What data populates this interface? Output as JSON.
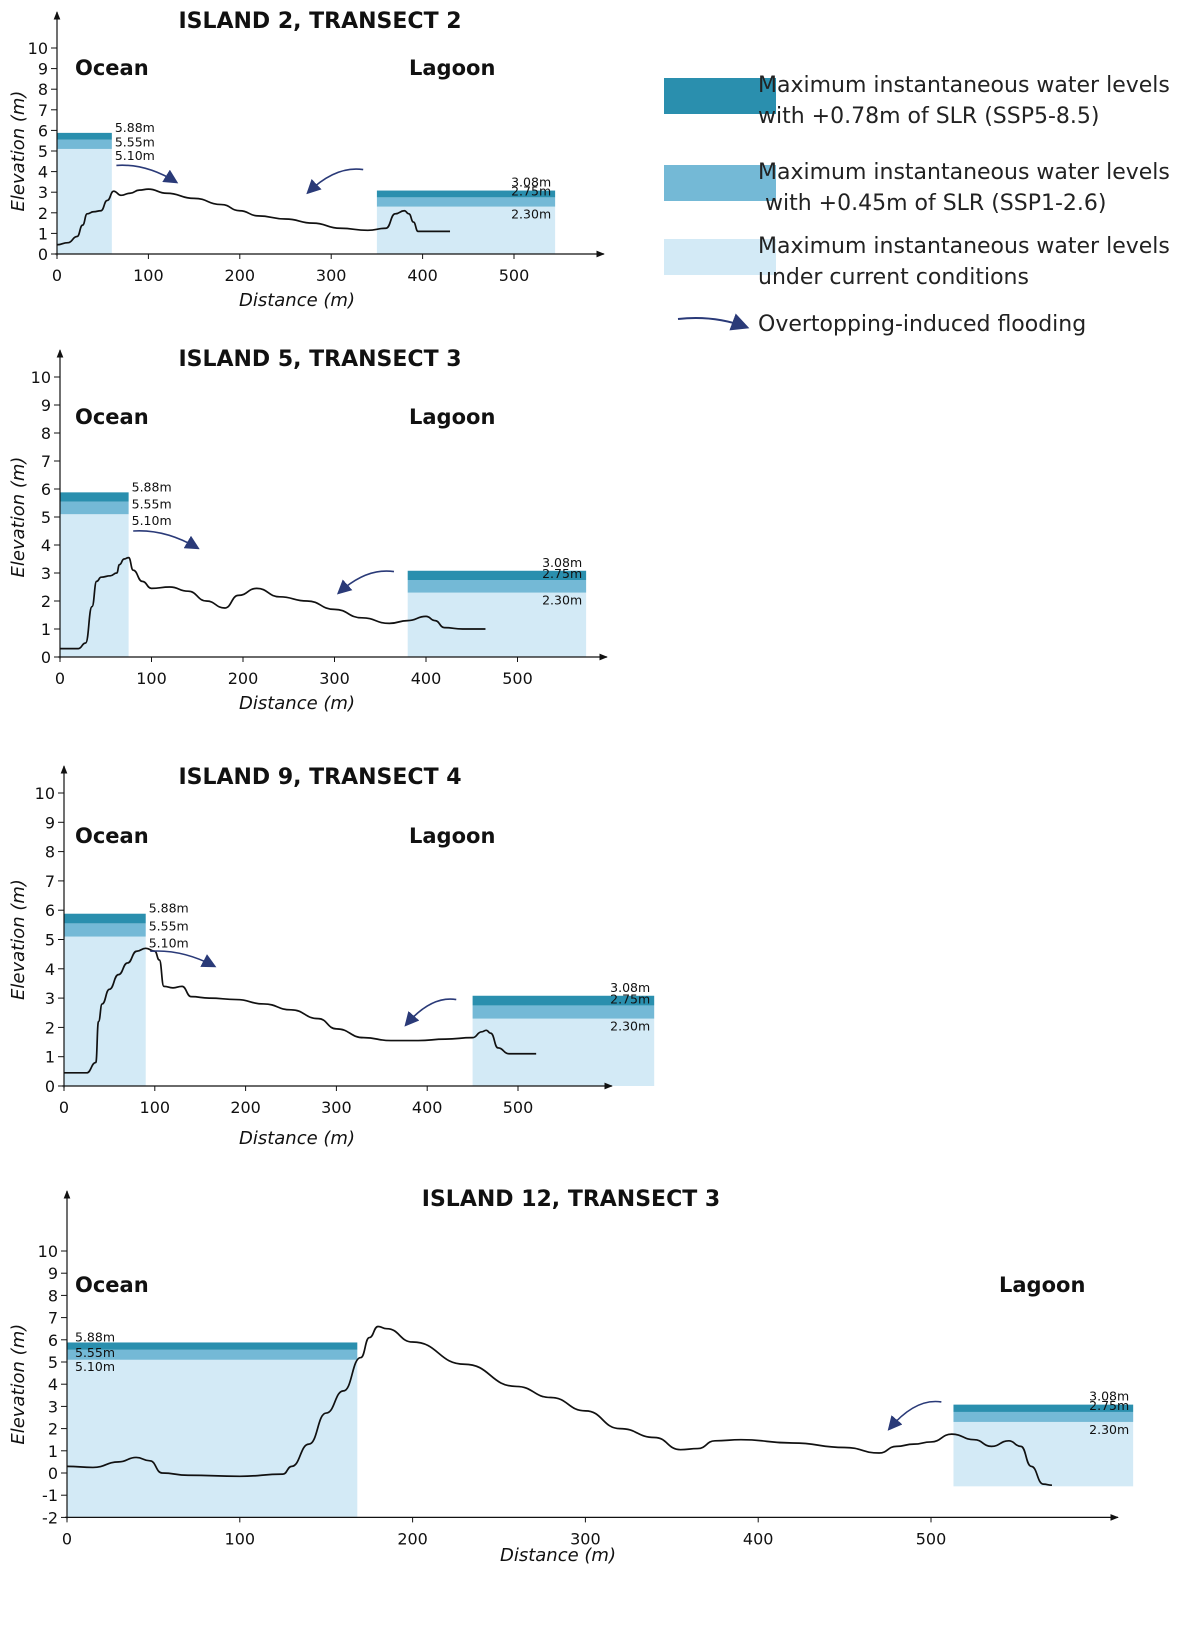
{
  "colors": {
    "ssp585": "#2a8fae",
    "ssp126": "#74b9d6",
    "current": "#d3eaf6",
    "terrain": "#111111",
    "arrow": "#2a3a78",
    "axis": "#111111"
  },
  "legend": {
    "items": [
      {
        "line1": "Maximum instantaneous water levels",
        "line2": "with +0.78m of SLR (SSP5-8.5)"
      },
      {
        "line1": "Maximum instantaneous water levels",
        "line2": " with +0.45m of SLR (SSP1-2.6)"
      },
      {
        "line1": "Maximum instantaneous water levels",
        "line2": "under current conditions"
      }
    ],
    "arrow_label": "Overtopping-induced flooding"
  },
  "chart_data": [
    {
      "type": "area",
      "title": "ISLAND 2, TRANSECT 2",
      "xlabel": "Distance (m)",
      "ylabel": "Elevation (m)",
      "xlim": [
        0,
        600
      ],
      "ylim": [
        0,
        10
      ],
      "xticks": [
        0,
        100,
        200,
        300,
        400,
        500
      ],
      "yticks": [
        0,
        1,
        2,
        3,
        4,
        5,
        6,
        7,
        8,
        9,
        10
      ],
      "ocean_label": "Ocean",
      "lagoon_label": "Lagoon",
      "ocean_levels": {
        "x": [
          0,
          60
        ],
        "current": 5.1,
        "ssp126": 5.55,
        "ssp585": 5.88,
        "labels": [
          "5.88m",
          "5.55m",
          "5.10m"
        ]
      },
      "lagoon_levels": {
        "x": [
          350,
          545
        ],
        "current": 3.08,
        "ssp126": 2.75,
        "ssp585": 2.3,
        "labels": [
          "3.08m",
          "2.75m",
          "2.30m"
        ]
      },
      "profile": {
        "x": [
          0,
          12,
          22,
          28,
          33,
          40,
          48,
          55,
          62,
          70,
          80,
          90,
          100,
          120,
          150,
          180,
          200,
          220,
          250,
          280,
          310,
          340,
          360,
          370,
          380,
          385,
          390,
          395,
          410,
          430
        ],
        "y": [
          0.45,
          0.55,
          0.85,
          1.4,
          1.95,
          2.05,
          2.1,
          2.6,
          3.05,
          2.85,
          2.95,
          3.1,
          3.15,
          2.95,
          2.7,
          2.4,
          2.1,
          1.85,
          1.7,
          1.5,
          1.25,
          1.15,
          1.25,
          1.95,
          2.1,
          1.95,
          1.55,
          1.1,
          1.1,
          1.1
        ]
      },
      "arrows": [
        {
          "from": [
            65,
            4.3
          ],
          "to": [
            130,
            3.5
          ]
        },
        {
          "from": [
            335,
            4.1
          ],
          "to": [
            275,
            3.0
          ]
        }
      ]
    },
    {
      "type": "area",
      "title": "ISLAND 5, TRANSECT 3",
      "xlabel": "Distance (m)",
      "ylabel": "Elevation (m)",
      "xlim": [
        0,
        600
      ],
      "ylim": [
        0,
        10
      ],
      "xticks": [
        0,
        100,
        200,
        300,
        400,
        500
      ],
      "yticks": [
        0,
        1,
        2,
        3,
        4,
        5,
        6,
        7,
        8,
        9,
        10
      ],
      "ocean_label": "Ocean",
      "lagoon_label": "Lagoon",
      "ocean_levels": {
        "x": [
          0,
          75
        ],
        "current": 5.1,
        "ssp126": 5.55,
        "ssp585": 5.88,
        "labels": [
          "5.88m",
          "5.55m",
          "5.10m"
        ]
      },
      "lagoon_levels": {
        "x": [
          380,
          575
        ],
        "current": 3.08,
        "ssp126": 2.75,
        "ssp585": 2.3,
        "labels": [
          "3.08m",
          "2.75m",
          "2.30m"
        ]
      },
      "profile": {
        "x": [
          0,
          20,
          28,
          35,
          40,
          45,
          55,
          62,
          65,
          70,
          75,
          80,
          90,
          100,
          120,
          140,
          160,
          180,
          195,
          215,
          240,
          270,
          300,
          330,
          360,
          380,
          400,
          410,
          420,
          440,
          465
        ],
        "y": [
          0.3,
          0.3,
          0.5,
          1.8,
          2.7,
          2.85,
          2.9,
          3.0,
          3.3,
          3.5,
          3.55,
          3.1,
          2.7,
          2.45,
          2.5,
          2.35,
          2.0,
          1.75,
          2.2,
          2.45,
          2.15,
          2.0,
          1.7,
          1.4,
          1.2,
          1.3,
          1.45,
          1.3,
          1.05,
          1.0,
          1.0
        ]
      },
      "arrows": [
        {
          "from": [
            80,
            4.5
          ],
          "to": [
            150,
            3.9
          ]
        },
        {
          "from": [
            365,
            3.05
          ],
          "to": [
            305,
            2.3
          ]
        }
      ]
    },
    {
      "type": "area",
      "title": "ISLAND 9, TRANSECT 4",
      "xlabel": "Distance (m)",
      "ylabel": "Elevation (m)",
      "xlim": [
        0,
        600
      ],
      "ylim": [
        0,
        10
      ],
      "xticks": [
        0,
        100,
        200,
        300,
        400,
        500
      ],
      "yticks": [
        0,
        1,
        2,
        3,
        4,
        5,
        6,
        7,
        8,
        9,
        10
      ],
      "ocean_label": "Ocean",
      "lagoon_label": "Lagoon",
      "ocean_levels": {
        "x": [
          0,
          90
        ],
        "current": 5.1,
        "ssp126": 5.55,
        "ssp585": 5.88,
        "labels": [
          "5.88m",
          "5.55m",
          "5.10m"
        ]
      },
      "lagoon_levels": {
        "x": [
          450,
          650
        ],
        "current": 3.08,
        "ssp126": 2.75,
        "ssp585": 2.3,
        "labels": [
          "3.08m",
          "2.75m",
          "2.30m"
        ]
      },
      "profile": {
        "x": [
          0,
          25,
          35,
          38,
          42,
          50,
          60,
          70,
          80,
          90,
          100,
          105,
          110,
          120,
          130,
          140,
          160,
          190,
          220,
          250,
          280,
          300,
          330,
          360,
          390,
          420,
          450,
          460,
          465,
          470,
          478,
          490,
          520
        ],
        "y": [
          0.45,
          0.45,
          0.8,
          2.2,
          2.8,
          3.3,
          3.8,
          4.2,
          4.6,
          4.7,
          4.6,
          4.3,
          3.4,
          3.35,
          3.4,
          3.05,
          3.0,
          2.95,
          2.8,
          2.6,
          2.3,
          1.95,
          1.65,
          1.55,
          1.55,
          1.6,
          1.65,
          1.85,
          1.9,
          1.8,
          1.3,
          1.1,
          1.1
        ]
      },
      "arrows": [
        {
          "from": [
            95,
            4.6
          ],
          "to": [
            165,
            4.1
          ]
        },
        {
          "from": [
            432,
            2.95
          ],
          "to": [
            377,
            2.1
          ]
        }
      ]
    },
    {
      "type": "area",
      "title": "ISLAND 12, TRANSECT 3",
      "xlabel": "Distance (m)",
      "ylabel": "Elevation (m)",
      "xlim": [
        0,
        600
      ],
      "ylim": [
        -2,
        10
      ],
      "xticks": [
        0,
        100,
        200,
        300,
        400,
        500
      ],
      "yticks": [
        -2,
        -1,
        0,
        1,
        2,
        3,
        4,
        5,
        6,
        7,
        8,
        9,
        10
      ],
      "ocean_label": "Ocean",
      "lagoon_label": "Lagoon",
      "ocean_levels": {
        "x": [
          0,
          168
        ],
        "current": 5.1,
        "ssp126": 5.55,
        "ssp585": 5.88,
        "labels": [
          "5.88m",
          "5.55m",
          "5.10m"
        ]
      },
      "lagoon_levels": {
        "x": [
          513,
          617
        ],
        "current": 3.08,
        "ssp126": 2.75,
        "ssp585": 2.3,
        "labels": [
          "3.08m",
          "2.75m",
          "2.30m"
        ]
      },
      "profile": {
        "x": [
          0,
          15,
          30,
          40,
          48,
          55,
          70,
          100,
          125,
          130,
          140,
          150,
          160,
          170,
          175,
          180,
          185,
          200,
          230,
          260,
          280,
          300,
          320,
          340,
          355,
          365,
          375,
          390,
          420,
          450,
          470,
          480,
          490,
          500,
          512,
          525,
          535,
          545,
          552,
          558,
          565,
          570
        ],
        "y": [
          0.3,
          0.25,
          0.5,
          0.7,
          0.55,
          0.0,
          -0.1,
          -0.15,
          -0.05,
          0.3,
          1.3,
          2.7,
          3.7,
          5.2,
          6.1,
          6.6,
          6.5,
          5.9,
          4.9,
          3.9,
          3.4,
          2.8,
          2.0,
          1.6,
          1.05,
          1.1,
          1.45,
          1.5,
          1.35,
          1.15,
          0.9,
          1.2,
          1.3,
          1.4,
          1.75,
          1.5,
          1.2,
          1.45,
          1.2,
          0.3,
          -0.5,
          -0.55
        ]
      },
      "arrows": [
        {
          "from": [
            506,
            3.2
          ],
          "to": [
            476,
            2.0
          ]
        }
      ]
    }
  ]
}
